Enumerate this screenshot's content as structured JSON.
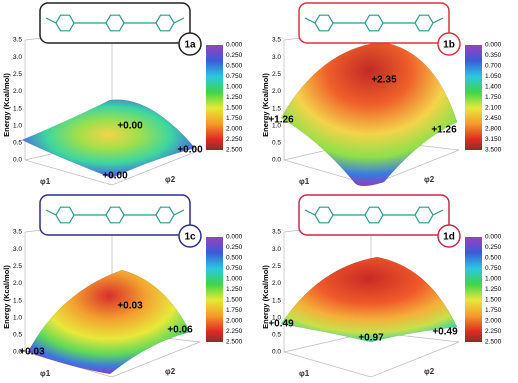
{
  "panels": [
    {
      "label": "1a",
      "axis_label": "Energy (Kcal/mol)",
      "x_label": "φ1",
      "y_label": "φ2",
      "zticks": [
        "0.0",
        "0.5",
        "1.0",
        "1.5",
        "2.0",
        "2.5",
        "3.0",
        "3.5"
      ],
      "colorbar_ticks": [
        "0.000",
        "0.250",
        "0.500",
        "0.750",
        "1.000",
        "1.250",
        "1.500",
        "1.750",
        "2.000",
        "2.250",
        "2.500"
      ],
      "annotations": [
        "+0.00",
        "+0.00",
        "+0.00"
      ]
    },
    {
      "label": "1b",
      "axis_label": "Energy (Kcal/mol)",
      "x_label": "φ1",
      "y_label": "φ2",
      "zticks": [
        "0.0",
        "0.5",
        "1.0",
        "1.5",
        "2.0",
        "2.5",
        "3.0",
        "3.5"
      ],
      "colorbar_ticks": [
        "0.000",
        "0.350",
        "0.700",
        "1.050",
        "1.400",
        "1.750",
        "2.100",
        "2.450",
        "2.800",
        "3.150",
        "3.500"
      ],
      "annotations": [
        "+2.35",
        "+1.26",
        "+1.26"
      ]
    },
    {
      "label": "1c",
      "axis_label": "Energy (Kcal/mol)",
      "x_label": "φ1",
      "y_label": "φ2",
      "zticks": [
        "0.0",
        "0.5",
        "1.0",
        "1.5",
        "2.0",
        "2.5",
        "3.0",
        "3.5"
      ],
      "colorbar_ticks": [
        "0.000",
        "0.250",
        "0.500",
        "0.750",
        "1.000",
        "1.250",
        "1.500",
        "1.750",
        "2.000",
        "2.250",
        "2.500"
      ],
      "annotations": [
        "+0.03",
        "+0.06",
        "+0.03"
      ]
    },
    {
      "label": "1d",
      "axis_label": "Energy (Kcal/mol)",
      "x_label": "φ1",
      "y_label": "φ2",
      "zticks": [
        "0.0",
        "0.5",
        "1.0",
        "1.5",
        "2.0",
        "2.5",
        "3.0",
        "3.5"
      ],
      "colorbar_ticks": [
        "0.000",
        "0.250",
        "0.500",
        "0.750",
        "1.000",
        "1.250",
        "1.500",
        "1.750",
        "2.000",
        "2.250",
        "2.500"
      ],
      "annotations": [
        "+0.49",
        "+0.97",
        "+0.49"
      ]
    }
  ]
}
